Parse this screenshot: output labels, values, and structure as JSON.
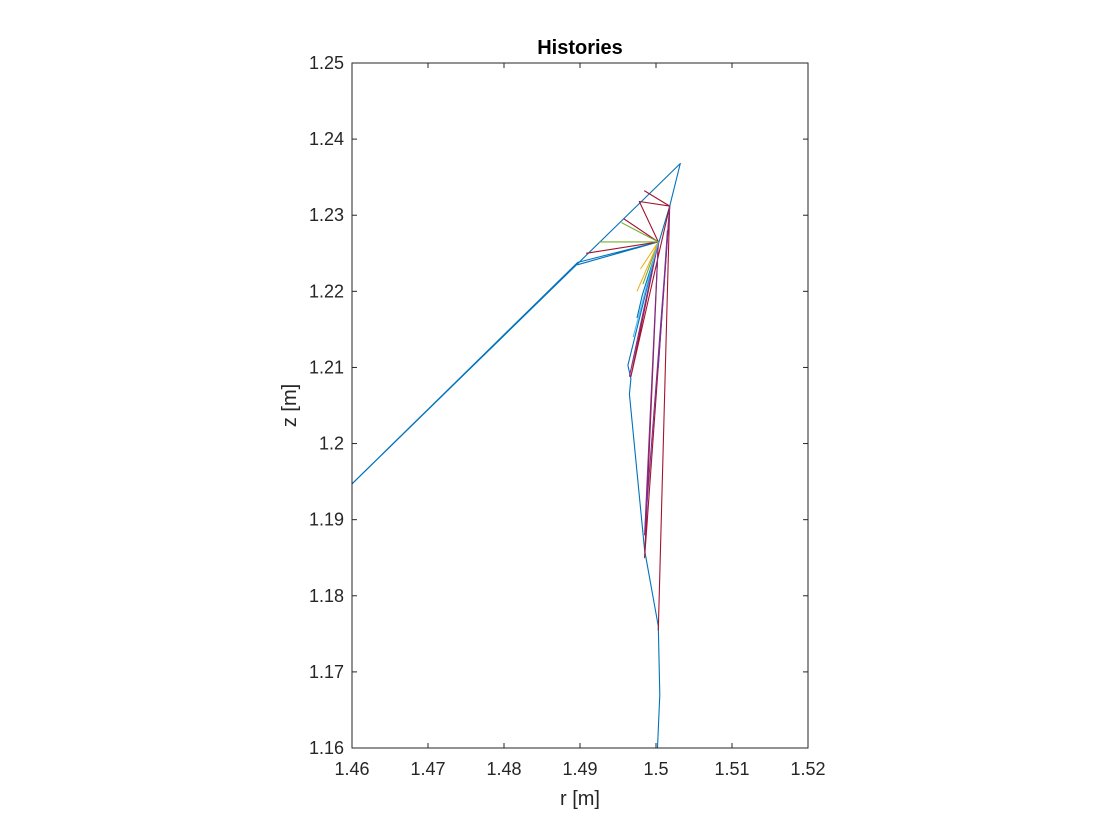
{
  "chart_data": {
    "type": "line",
    "title": "Histories",
    "xlabel": "r [m]",
    "ylabel": "z [m]",
    "xlim": [
      1.46,
      1.52
    ],
    "ylim": [
      1.16,
      1.25
    ],
    "xticks": [
      1.46,
      1.47,
      1.48,
      1.49,
      1.5,
      1.51,
      1.52
    ],
    "yticks": [
      1.16,
      1.17,
      1.18,
      1.19,
      1.2,
      1.21,
      1.22,
      1.23,
      1.24,
      1.25
    ],
    "xtick_labels": [
      "1.46",
      "1.47",
      "1.48",
      "1.49",
      "1.5",
      "1.51",
      "1.52"
    ],
    "ytick_labels": [
      "1.16",
      "1.17",
      "1.18",
      "1.19",
      "1.2",
      "1.21",
      "1.22",
      "1.23",
      "1.24",
      "1.25"
    ],
    "grid": false,
    "box": true,
    "series": [
      {
        "color": "#0072BD",
        "x": [
          1.46,
          1.4897,
          1.5003,
          1.4897,
          1.5003,
          1.4963,
          1.4967,
          1.4965,
          1.4967,
          1.4985,
          1.5003,
          1.5005,
          1.5002
        ],
        "y": [
          1.1947,
          1.2238,
          1.2265,
          1.2235,
          1.2265,
          1.2103,
          1.2085,
          1.2065,
          1.2045,
          1.186,
          1.176,
          1.167,
          1.16
        ]
      },
      {
        "color": "#0072BD",
        "x": [
          1.46,
          1.5032,
          1.5018,
          1.5004,
          1.4982,
          1.4975
        ],
        "y": [
          1.1947,
          1.2368,
          1.2312,
          1.2265,
          1.2195,
          1.2165
        ]
      },
      {
        "color": "#A2142F",
        "x": [
          1.4908,
          1.5003,
          1.4958,
          1.5003,
          1.4978,
          1.5018,
          1.4985,
          1.5018,
          1.4967,
          1.5003,
          1.4985,
          1.5018,
          1.5003,
          1.5018
        ],
        "y": [
          1.225,
          1.2265,
          1.2295,
          1.2265,
          1.2318,
          1.2312,
          1.2332,
          1.2312,
          1.2088,
          1.2265,
          1.185,
          1.2312,
          1.1755,
          1.2312
        ]
      },
      {
        "color": "#77AC30",
        "x": [
          1.4925,
          1.5003,
          1.4955,
          1.5003,
          1.4983,
          1.5003
        ],
        "y": [
          1.2265,
          1.2265,
          1.229,
          1.2265,
          1.221,
          1.2265
        ]
      },
      {
        "color": "#EDB120",
        "x": [
          1.4975,
          1.5003,
          1.498,
          1.5003
        ],
        "y": [
          1.22,
          1.2265,
          1.223,
          1.2265
        ]
      },
      {
        "color": "#7E2F8E",
        "x": [
          1.4965,
          1.5003,
          1.4985,
          1.5018,
          1.5003,
          1.5015
        ],
        "y": [
          1.2088,
          1.2265,
          1.188,
          1.2312,
          1.21,
          1.228
        ]
      },
      {
        "color": "#4DBEEE",
        "x": [
          1.497,
          1.5003
        ],
        "y": [
          1.214,
          1.2265
        ]
      }
    ]
  }
}
